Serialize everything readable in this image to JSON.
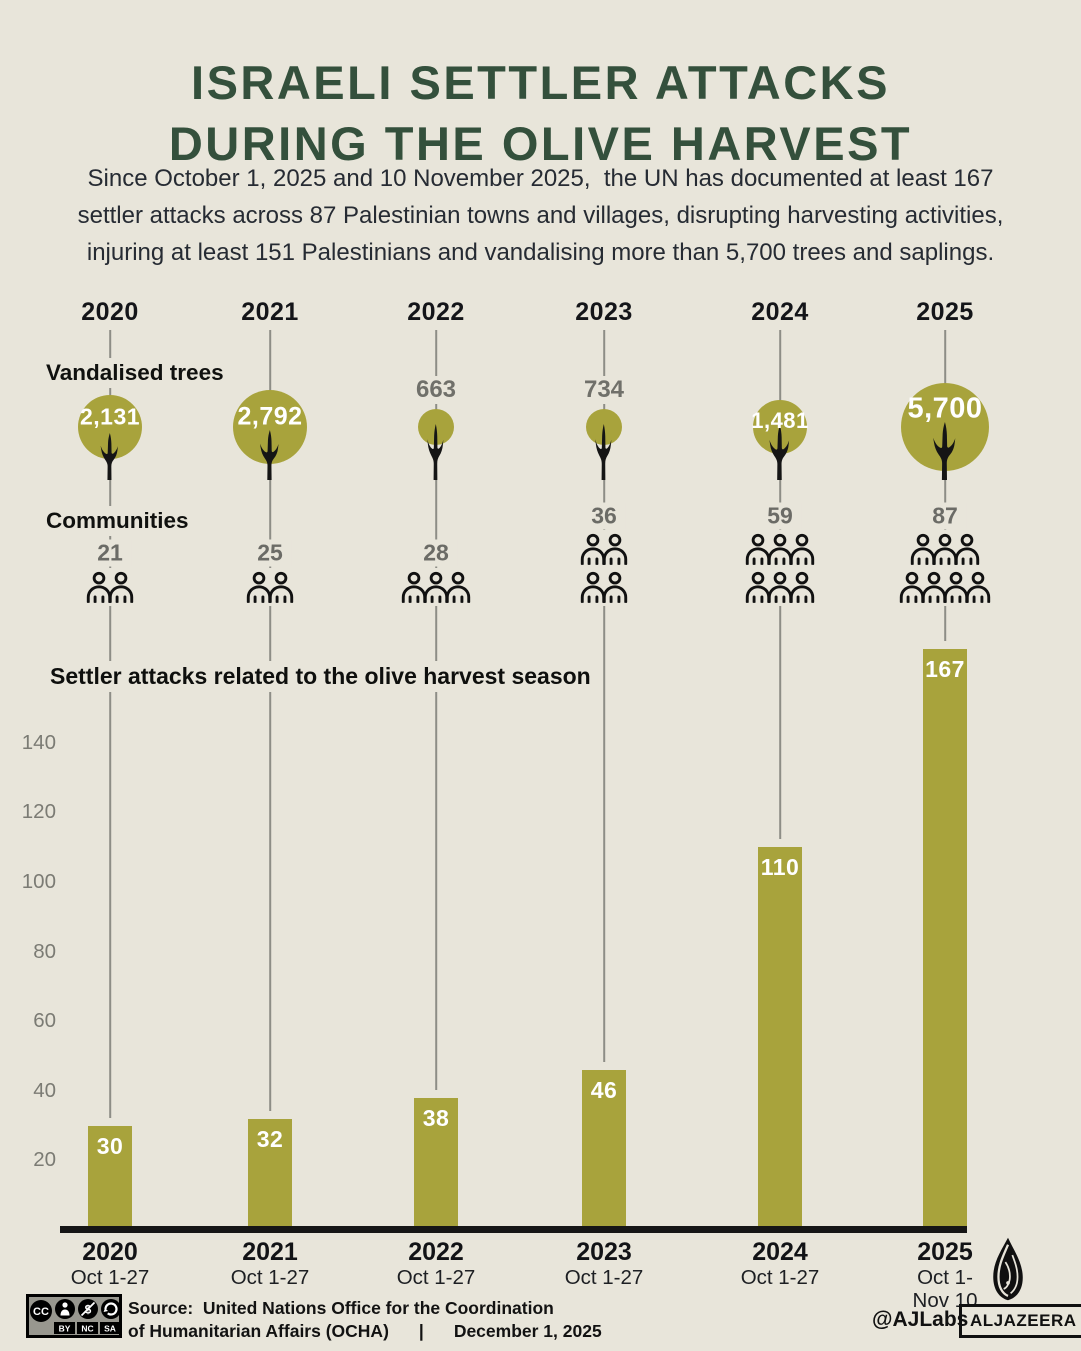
{
  "page": {
    "background": "#e8e5da",
    "accent_olive": "#a8a33c",
    "title_color": "#34503c",
    "muted_gray": "#70706a"
  },
  "header": {
    "title_line1": "ISRAELI SETTLER ATTACKS",
    "title_line2": "DURING THE OLIVE HARVEST",
    "subtitle_line1": "Since October 1, 2025 and 10 November 2025,  the UN has documented at least 167",
    "subtitle_line2": "settler attacks across 87 Palestinian towns and villages, disrupting harvesting activities,",
    "subtitle_line3": "injuring at least 151 Palestinians and vandalising more than 5,700 trees and saplings."
  },
  "years": [
    "2020",
    "2021",
    "2022",
    "2023",
    "2024",
    "2025"
  ],
  "trees": {
    "label": "Vandalised trees",
    "display": [
      "2,131",
      "2,792",
      "663",
      "734",
      "1,481",
      "5,700"
    ]
  },
  "communities": {
    "label": "Communities",
    "display": [
      "21",
      "25",
      "28",
      "36",
      "59",
      "87"
    ],
    "icon_rows": [
      [
        2
      ],
      [
        2
      ],
      [
        3
      ],
      [
        2,
        2
      ],
      [
        3,
        3
      ],
      [
        3,
        4
      ]
    ]
  },
  "attacks": {
    "label": "Settler attacks related to the olive harvest season",
    "display": [
      "30",
      "32",
      "38",
      "46",
      "110",
      "167"
    ],
    "yticks": [
      "140",
      "120",
      "100",
      "80",
      "60",
      "40",
      "20"
    ]
  },
  "xaxis": {
    "years": [
      "2020",
      "2021",
      "2022",
      "2023",
      "2024",
      "2025"
    ],
    "ranges": [
      "Oct 1-27",
      "Oct 1-27",
      "Oct 1-27",
      "Oct 1-27",
      "Oct 1-27",
      "Oct 1-\nNov 10"
    ]
  },
  "footer": {
    "cc": "CC",
    "license_labels": [
      "BY",
      "NC",
      "SA"
    ],
    "source_line1": "Source:  United Nations Office for the Coordination",
    "source_line2": "of Humanitarian Affairs (OCHA)",
    "separator": "|",
    "date": "December 1, 2025",
    "credit": "@AJLabs",
    "brand": "ALJAZEERA"
  },
  "chart_data": [
    {
      "type": "bar",
      "title": "Settler attacks related to the olive harvest season",
      "categories": [
        "2020 Oct 1-27",
        "2021 Oct 1-27",
        "2022 Oct 1-27",
        "2023 Oct 1-27",
        "2024 Oct 1-27",
        "2025 Oct 1-Nov 10"
      ],
      "values": [
        30,
        32,
        38,
        46,
        110,
        167
      ],
      "ylabel": "",
      "xlabel": "",
      "ylim": [
        0,
        170
      ],
      "yticks": [
        20,
        40,
        60,
        80,
        100,
        120,
        140
      ],
      "grid": false,
      "legend": "none",
      "bar_color": "#a8a33c",
      "value_labels": "inside-top, white"
    },
    {
      "type": "pictorial-bubble",
      "title": "Vandalised trees",
      "categories": [
        "2020",
        "2021",
        "2022",
        "2023",
        "2024",
        "2025"
      ],
      "values": [
        2131,
        2792,
        663,
        734,
        1481,
        5700
      ],
      "note": "olive tree icons sized by value; labels inside bubble except 663 and 734 shown above in gray"
    },
    {
      "type": "pictogram",
      "title": "Communities",
      "categories": [
        "2020",
        "2021",
        "2022",
        "2023",
        "2024",
        "2025"
      ],
      "values": [
        21,
        25,
        28,
        36,
        59,
        87
      ],
      "note": "person outline icons, row layouts 2 / 2 / 3 / 2+2 / 3+3 / 3+4"
    }
  ]
}
